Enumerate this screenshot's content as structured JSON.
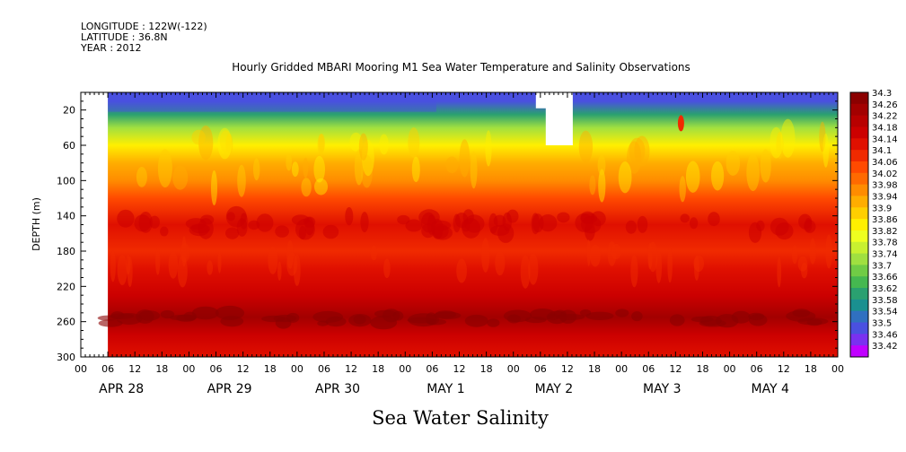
{
  "header": {
    "longitude": "LONGITUDE : 122W(-122)",
    "latitude": "LATITUDE : 36.8N",
    "year": "YEAR : 2012"
  },
  "chart_data": {
    "type": "heatmap",
    "title": "Hourly Gridded MBARI Mooring M1 Sea Water Temperature and Salinity Observations",
    "variable": "Sea Water Salinity",
    "ylabel": "DEPTH (m)",
    "ylim": [
      300,
      0
    ],
    "y_ticks": [
      20,
      60,
      100,
      140,
      180,
      220,
      260,
      300
    ],
    "x_ticks": [
      "00",
      "06",
      "12",
      "18",
      "00",
      "06",
      "12",
      "18",
      "00",
      "06",
      "12",
      "18",
      "00",
      "06",
      "12",
      "18",
      "00",
      "06",
      "12",
      "18",
      "00",
      "06",
      "12",
      "18",
      "00",
      "06",
      "12",
      "18",
      "00"
    ],
    "x_day_labels": [
      "APR 28",
      "APR 29",
      "APR 30",
      "MAY  1",
      "MAY  2",
      "MAY  3",
      "MAY  4"
    ],
    "colorbar": {
      "levels": [
        "34.3",
        "34.26",
        "34.22",
        "34.18",
        "34.14",
        "34.1",
        "34.06",
        "34.02",
        "33.98",
        "33.94",
        "33.9",
        "33.86",
        "33.82",
        "33.78",
        "33.74",
        "33.7",
        "33.66",
        "33.62",
        "33.58",
        "33.54",
        "33.5",
        "33.46",
        "33.42"
      ],
      "colors": [
        "#8b0000",
        "#a30000",
        "#b80000",
        "#cc0000",
        "#e01000",
        "#f02a00",
        "#ff4a00",
        "#ff6a00",
        "#ff8c00",
        "#ffad00",
        "#ffcf00",
        "#ffef00",
        "#eeff20",
        "#c8f030",
        "#a0e040",
        "#70cc45",
        "#45b850",
        "#2aa070",
        "#1a9090",
        "#3070c0",
        "#4a50e0",
        "#7a30f0",
        "#c000ff"
      ]
    },
    "depth_profile": [
      {
        "depth": 10,
        "salinity": 33.5
      },
      {
        "depth": 25,
        "salinity": 33.64
      },
      {
        "depth": 40,
        "salinity": 33.76
      },
      {
        "depth": 60,
        "salinity": 33.88
      },
      {
        "depth": 80,
        "salinity": 33.96
      },
      {
        "depth": 100,
        "salinity": 34.0
      },
      {
        "depth": 120,
        "salinity": 34.06
      },
      {
        "depth": 150,
        "salinity": 34.15
      },
      {
        "depth": 180,
        "salinity": 34.12
      },
      {
        "depth": 200,
        "salinity": 34.14
      },
      {
        "depth": 230,
        "salinity": 34.18
      },
      {
        "depth": 255,
        "salinity": 34.26
      },
      {
        "depth": 275,
        "salinity": 34.2
      },
      {
        "depth": 300,
        "salinity": 34.14
      }
    ],
    "data_start": "APR 28 06",
    "data_end": "MAY 5 00"
  }
}
